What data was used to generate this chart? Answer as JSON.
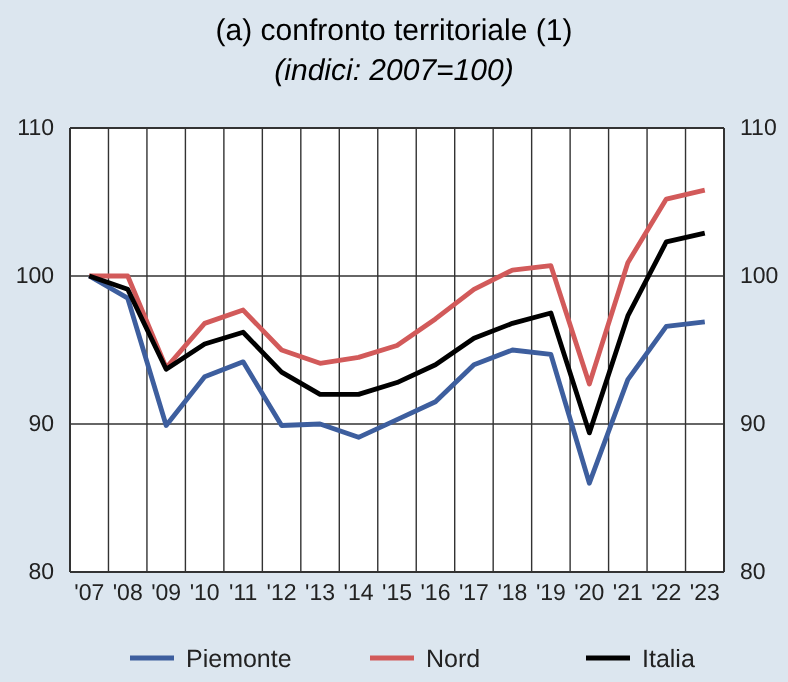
{
  "chart_data": {
    "type": "line",
    "title": "(a) confronto territoriale (1)",
    "subtitle": "(indici: 2007=100)",
    "categories": [
      "'07",
      "'08",
      "'09",
      "'10",
      "'11",
      "'12",
      "'13",
      "'14",
      "'15",
      "'16",
      "'17",
      "'18",
      "'19",
      "'20",
      "'21",
      "'22",
      "'23"
    ],
    "series": [
      {
        "name": "Piemonte",
        "color": "#3d5e9e",
        "values": [
          100,
          98.5,
          89.9,
          93.2,
          94.2,
          89.9,
          90.0,
          89.1,
          90.3,
          91.5,
          94.0,
          95.0,
          94.7,
          86.0,
          93.0,
          96.6,
          96.9
        ]
      },
      {
        "name": "Nord",
        "color": "#d25a5a",
        "values": [
          100,
          100,
          93.8,
          96.8,
          97.7,
          95.0,
          94.1,
          94.5,
          95.3,
          97.1,
          99.1,
          100.4,
          100.7,
          92.7,
          100.9,
          105.2,
          105.8
        ]
      },
      {
        "name": "Italia",
        "color": "#000000",
        "values": [
          100,
          99.1,
          93.7,
          95.4,
          96.2,
          93.5,
          92.0,
          92.0,
          92.8,
          94.0,
          95.8,
          96.8,
          97.5,
          89.4,
          97.3,
          102.3,
          102.9
        ]
      }
    ],
    "ylim": [
      80,
      110
    ],
    "yticks": [
      80,
      90,
      100,
      110
    ],
    "y2lim": [
      80,
      110
    ],
    "y2ticks": [
      80,
      90,
      100,
      110
    ],
    "grid": true,
    "legend": "bottom",
    "marker": "none",
    "line_style": "solid"
  }
}
